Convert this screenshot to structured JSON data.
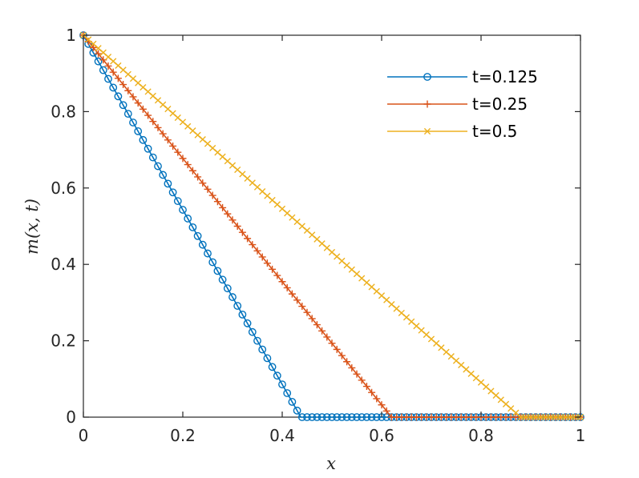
{
  "chart_data": {
    "type": "line",
    "title": "",
    "xlabel": "x",
    "ylabel": "m(x, t)",
    "xlim": [
      0,
      1
    ],
    "ylim": [
      0,
      1
    ],
    "xticks": [
      0,
      0.2,
      0.4,
      0.6,
      0.8,
      1
    ],
    "xtick_labels": [
      "0",
      "0.2",
      "0.4",
      "0.6",
      "0.8",
      "1"
    ],
    "yticks": [
      0,
      0.2,
      0.4,
      0.6,
      0.8,
      1
    ],
    "ytick_labels": [
      "0",
      "0.2",
      "0.4",
      "0.6",
      "0.8",
      "1"
    ],
    "grid": false,
    "box": true,
    "legend_position": "top-right",
    "sample_points": 101,
    "series": [
      {
        "name": "t=0.125",
        "color": "#0072BD",
        "marker": "circle",
        "x": [
          0,
          0.4375,
          1
        ],
        "y": [
          1,
          0,
          0
        ]
      },
      {
        "name": "t=0.25",
        "color": "#D95319",
        "marker": "plus",
        "x": [
          0,
          0.62,
          1
        ],
        "y": [
          1,
          0,
          0
        ]
      },
      {
        "name": "t=0.5",
        "color": "#EDB120",
        "marker": "x",
        "x": [
          0,
          0.88,
          1
        ],
        "y": [
          1,
          0,
          0
        ]
      }
    ]
  }
}
